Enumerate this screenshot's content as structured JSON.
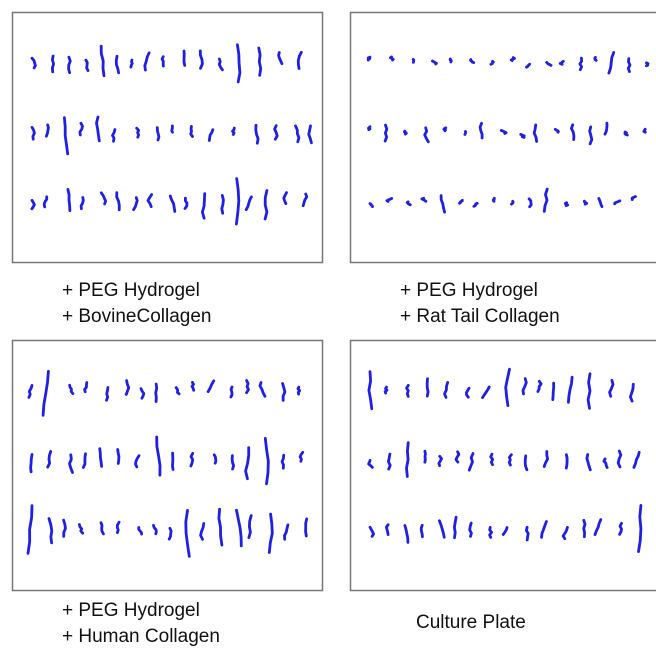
{
  "panels": [
    {
      "caption": [
        "+ PEG Hydrogel",
        "+ BovineCollagen"
      ]
    },
    {
      "caption": [
        "+ PEG Hydrogel",
        "+ Rat Tail Collagen"
      ]
    },
    {
      "caption": [
        "+ PEG Hydrogel",
        "+ Human Collagen"
      ]
    },
    {
      "caption": [
        "Culture Plate"
      ]
    }
  ]
}
